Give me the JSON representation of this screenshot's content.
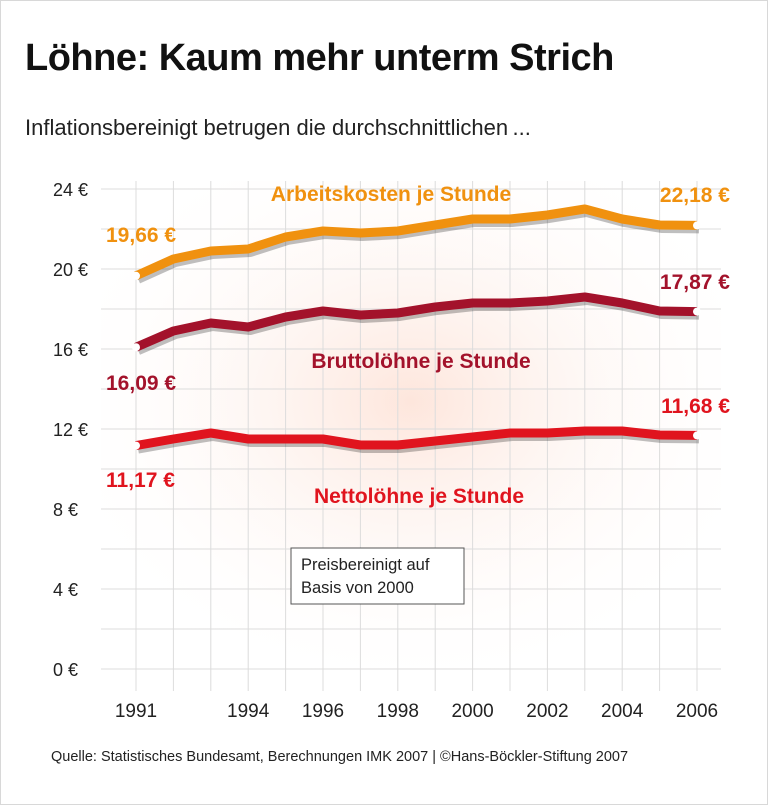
{
  "title": "Löhne: Kaum mehr unterm Strich",
  "subtitle": "Inflationsbereinigt betrugen die durchschnittlichen ...",
  "source": "Quelle: Statistisches Bundesamt, Berechnungen IMK 2007 | ©Hans-Böckler-Stiftung 2007",
  "chart_data": {
    "type": "line",
    "ylim": [
      0,
      24
    ],
    "yticks": [
      "0 €",
      "4 €",
      "8 €",
      "12 €",
      "16 €",
      "20 €",
      "24 €"
    ],
    "ytick_values": [
      0,
      4,
      8,
      12,
      16,
      20,
      24
    ],
    "xticks": [
      "1991",
      "1994",
      "1996",
      "1998",
      "2000",
      "2002",
      "2004",
      "2006"
    ],
    "xtick_values": [
      1991,
      1994,
      1996,
      1998,
      2000,
      2002,
      2004,
      2006
    ],
    "grid": true,
    "x": [
      1991,
      1992,
      1993,
      1994,
      1995,
      1996,
      1997,
      1998,
      1999,
      2000,
      2001,
      2002,
      2003,
      2004,
      2005,
      2006
    ],
    "series": [
      {
        "name": "Arbeitskosten je Stunde",
        "color": "#f0910f",
        "values": [
          19.66,
          20.5,
          20.9,
          21.0,
          21.6,
          21.9,
          21.8,
          21.9,
          22.2,
          22.5,
          22.5,
          22.7,
          23.0,
          22.5,
          22.2,
          22.18
        ],
        "start_label": "19,66 €",
        "end_label": "22,18 €"
      },
      {
        "name": "Bruttolöhne je Stunde",
        "color": "#a3122b",
        "values": [
          16.09,
          16.9,
          17.3,
          17.1,
          17.6,
          17.9,
          17.7,
          17.8,
          18.1,
          18.3,
          18.3,
          18.4,
          18.6,
          18.3,
          17.9,
          17.87
        ],
        "start_label": "16,09 €",
        "end_label": "17,87 €"
      },
      {
        "name": "Nettolöhne je Stunde",
        "color": "#e0141e",
        "values": [
          11.17,
          11.5,
          11.8,
          11.5,
          11.5,
          11.5,
          11.2,
          11.2,
          11.4,
          11.6,
          11.8,
          11.8,
          11.9,
          11.9,
          11.7,
          11.68
        ],
        "start_label": "11,17 €",
        "end_label": "11,68 €"
      }
    ],
    "annotation": [
      "Preisbereinigt auf",
      "Basis von 2000"
    ]
  }
}
